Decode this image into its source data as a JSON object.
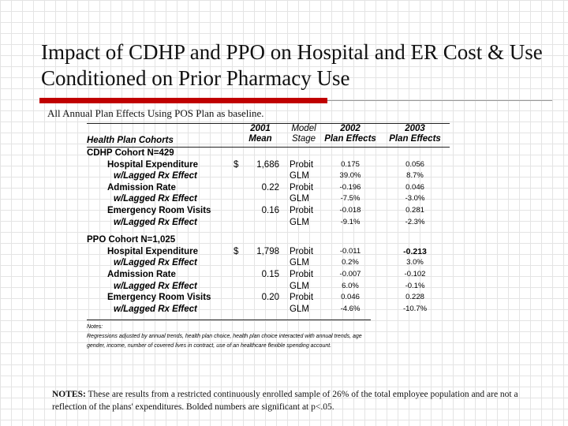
{
  "slide": {
    "title": "Impact of CDHP and PPO on Hospital and ER Cost & Use Conditioned on Prior Pharmacy Use",
    "subtitle": "All Annual Plan Effects Using POS Plan as baseline."
  },
  "table": {
    "headers": {
      "cohorts": "Health Plan Cohorts",
      "mean_line1": "2001",
      "mean_line2": "Mean",
      "stage_line1": "Model",
      "stage_line2": "Stage",
      "p02_line1": "2002",
      "p02_line2": "Plan Effects",
      "p03_line1": "2003",
      "p03_line2": "Plan Effects"
    },
    "rows": [
      {
        "label": "CDHP Cohort N=429",
        "level": 0,
        "dollar": "",
        "mean": "",
        "stage": "",
        "p02": "",
        "p03": "",
        "sig02": false,
        "sig03": false
      },
      {
        "label": "Hospital Expenditure",
        "level": 1,
        "dollar": "$",
        "mean": "1,686",
        "stage": "Probit",
        "p02": "0.175",
        "p03": "0.056",
        "sig02": false,
        "sig03": false
      },
      {
        "label": "w/Lagged Rx Effect",
        "level": 2,
        "dollar": "",
        "mean": "",
        "stage": "GLM",
        "p02": "39.0%",
        "p03": "8.7%",
        "sig02": false,
        "sig03": false
      },
      {
        "label": "Admission Rate",
        "level": 1,
        "dollar": "",
        "mean": "0.22",
        "stage": "Probit",
        "p02": "-0.196",
        "p03": "0.046",
        "sig02": false,
        "sig03": false
      },
      {
        "label": "w/Lagged Rx Effect",
        "level": 2,
        "dollar": "",
        "mean": "",
        "stage": "GLM",
        "p02": "-7.5%",
        "p03": "-3.0%",
        "sig02": false,
        "sig03": false
      },
      {
        "label": "Emergency Room Visits",
        "level": 1,
        "dollar": "",
        "mean": "0.16",
        "stage": "Probit",
        "p02": "-0.018",
        "p03": "0.281",
        "sig02": false,
        "sig03": false
      },
      {
        "label": "w/Lagged Rx Effect",
        "level": 2,
        "dollar": "",
        "mean": "",
        "stage": "GLM",
        "p02": "-9.1%",
        "p03": "-2.3%",
        "sig02": false,
        "sig03": false
      },
      {
        "label": "PPO Cohort N=1,025",
        "level": 0,
        "dollar": "",
        "mean": "",
        "stage": "",
        "p02": "",
        "p03": "",
        "sig02": false,
        "sig03": false
      },
      {
        "label": "Hospital Expenditure",
        "level": 1,
        "dollar": "$",
        "mean": "1,798",
        "stage": "Probit",
        "p02": "-0.011",
        "p03": "-0.213",
        "sig02": false,
        "sig03": true
      },
      {
        "label": "w/Lagged Rx Effect",
        "level": 2,
        "dollar": "",
        "mean": "",
        "stage": "GLM",
        "p02": "0.2%",
        "p03": "3.0%",
        "sig02": false,
        "sig03": false
      },
      {
        "label": "Admission Rate",
        "level": 1,
        "dollar": "",
        "mean": "0.15",
        "stage": "Probit",
        "p02": "-0.007",
        "p03": "-0.102",
        "sig02": false,
        "sig03": false
      },
      {
        "label": "w/Lagged Rx Effect",
        "level": 2,
        "dollar": "",
        "mean": "",
        "stage": "GLM",
        "p02": "6.0%",
        "p03": "-0.1%",
        "sig02": false,
        "sig03": false
      },
      {
        "label": "Emergency Room Visits",
        "level": 1,
        "dollar": "",
        "mean": "0.20",
        "stage": "Probit",
        "p02": "0.046",
        "p03": "0.228",
        "sig02": false,
        "sig03": false
      },
      {
        "label": "w/Lagged Rx Effect",
        "level": 2,
        "dollar": "",
        "mean": "",
        "stage": "GLM",
        "p02": "-4.6%",
        "p03": "-10.7%",
        "sig02": false,
        "sig03": false
      }
    ],
    "notes_heading": "Notes:",
    "notes_text": "Regressions adjusted by annual trends, health plan choice, health plan choice interacted with annual trends, age gender, income, number of covered lives in contract, use of an healthcare flexible spending account."
  },
  "footer": {
    "label": "NOTES:",
    "text": " These are results from a restricted continuously enrolled sample of 26% of the total employee population and are not a reflection of the plans' expenditures.  Bolded numbers are significant at p<.05."
  },
  "colors": {
    "accent_bar": "#c00000",
    "rule": "#999999"
  }
}
